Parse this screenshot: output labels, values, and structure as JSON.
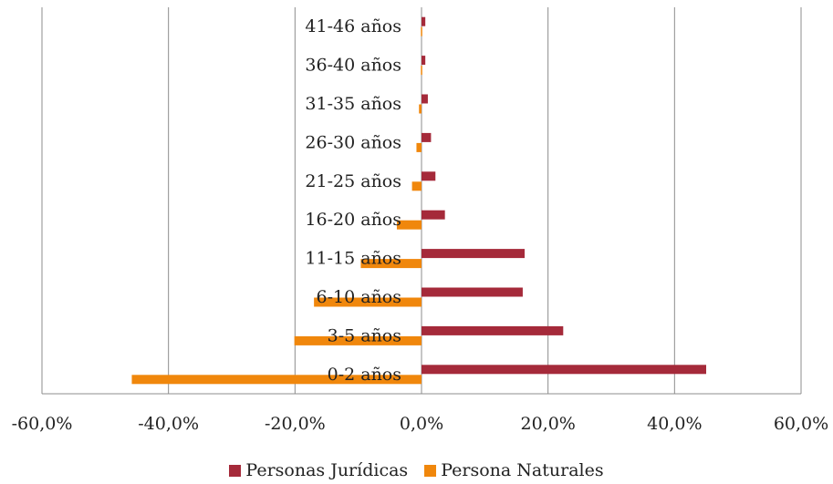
{
  "chart_data": {
    "type": "bar",
    "orientation": "horizontal",
    "categories": [
      "0-2 años",
      "3-5 años",
      "6-10 años",
      "11-15 años",
      "16-20 años",
      "21-25 años",
      "26-30 años",
      "31-35 años",
      "36-40 años",
      "41-46 años"
    ],
    "series": [
      {
        "name": "Personas Jurídicas",
        "color": "#A52A3A",
        "values": [
          45.0,
          22.4,
          16.0,
          16.3,
          3.7,
          2.2,
          1.5,
          1.0,
          0.6,
          0.6
        ]
      },
      {
        "name": "Persona Naturales",
        "color": "#F0870C",
        "values": [
          -45.8,
          -20.1,
          -17.0,
          -9.6,
          -3.9,
          -1.5,
          -0.8,
          -0.4,
          -0.1,
          -0.1
        ]
      }
    ],
    "xlim": [
      -60,
      60
    ],
    "xticks": [
      "-60,0%",
      "-40,0%",
      "-20,0%",
      "0,0%",
      "20,0%",
      "40,0%",
      "60,0%"
    ],
    "xtick_values": [
      -60,
      -40,
      -20,
      0,
      20,
      40,
      60
    ],
    "grid": "vertical",
    "legend_position": "bottom"
  }
}
